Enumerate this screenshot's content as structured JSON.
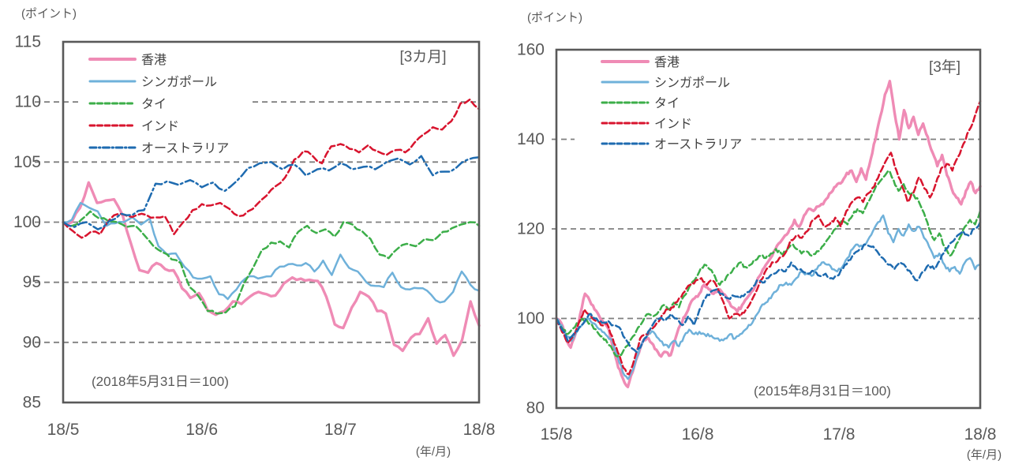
{
  "figure": {
    "description_labels": {
      "unit_label": "(ポイント)",
      "x_unit_label": "(年/月)"
    }
  },
  "chart_data": [
    {
      "type": "line",
      "period_label": "[3カ月]",
      "unit_label": "(ポイント)",
      "x_unit_label": "(年/月)",
      "note": "(2018年5月31日＝100)",
      "x_ticks": [
        "18/5",
        "18/6",
        "18/7",
        "18/8"
      ],
      "y_ticks": [
        115,
        110,
        105,
        100,
        95,
        90,
        85
      ],
      "gridlines": [
        110,
        105,
        100,
        95,
        90
      ],
      "ylim": [
        85,
        115
      ],
      "grid": "dashed-horizontal",
      "legend_position": "top-left-inside",
      "series": [
        {
          "key": "hk",
          "name": "香港",
          "color": "#ef8bb5",
          "line": "solid",
          "width": 3.4,
          "values": [
            100,
            100,
            101.2,
            103.3,
            101.6,
            101.8,
            101.9,
            100.6,
            98.2,
            96,
            95.8,
            96.6,
            96.1,
            96,
            94.5,
            93.7,
            94.1,
            92.7,
            92.3,
            92.6,
            93.4,
            93.2,
            93.8,
            94.2,
            94,
            93.9,
            94.9,
            95.4,
            95.3,
            95.2,
            95.1,
            93.8,
            91.5,
            91.2,
            92.9,
            94.2,
            93.8,
            92.6,
            92.4,
            89.8,
            89.3,
            90.4,
            90.7,
            92,
            89.9,
            90.6,
            88.9,
            90.2,
            93.4,
            91.4
          ]
        },
        {
          "key": "sg",
          "name": "シンガポール",
          "color": "#6fb1da",
          "line": "solid",
          "width": 2.5,
          "values": [
            100,
            100.2,
            101.6,
            101.2,
            100.9,
            99.7,
            99.9,
            100,
            100.4,
            99.8,
            100.3,
            98,
            97.3,
            97.4,
            96.3,
            95.4,
            95.3,
            95.5,
            94,
            93.6,
            94.4,
            95.3,
            95.5,
            95.4,
            95.5,
            96.3,
            96.5,
            96.4,
            96.6,
            95.9,
            96.8,
            95.6,
            97.3,
            96.2,
            95.9,
            95,
            94.7,
            94.6,
            95.8,
            94.6,
            94.4,
            94.5,
            94.3,
            93.5,
            93.4,
            94.2,
            95.9,
            94.8,
            94.3
          ]
        },
        {
          "key": "th",
          "name": "タイ",
          "color": "#3cae49",
          "line": "dashed",
          "width": 2.5,
          "values": [
            100,
            99.7,
            100.2,
            100.9,
            100.3,
            100.1,
            100,
            99.6,
            99.7,
            98.9,
            98,
            97.5,
            96.9,
            96.6,
            94.6,
            93.8,
            92.6,
            92.4,
            92.5,
            93,
            94.9,
            96.2,
            97.7,
            98.3,
            98.4,
            97.9,
            99.2,
            99.7,
            99.1,
            99.4,
            98.8,
            100,
            99.8,
            99.3,
            98.6,
            97.3,
            97,
            97.8,
            98.2,
            98,
            98.6,
            98.5,
            99.2,
            99.5,
            99.8,
            100,
            99.7
          ]
        },
        {
          "key": "in",
          "name": "インド",
          "color": "#d8142e",
          "line": "dashed",
          "width": 2.5,
          "values": [
            100,
            99.3,
            98.7,
            99.2,
            99,
            100.2,
            100.7,
            100.5,
            100.6,
            100.6,
            100.4,
            100.5,
            99,
            100,
            101,
            101.5,
            101.4,
            101.6,
            101.1,
            100.5,
            100.9,
            101.5,
            102.2,
            103,
            103.7,
            105.2,
            105.9,
            105.5,
            104.9,
            106.3,
            106.5,
            106.1,
            105.8,
            106.4,
            105.9,
            105.6,
            106,
            105.8,
            106.6,
            107.3,
            107.9,
            107.7,
            108.4,
            109.9,
            110.2,
            109.4
          ]
        },
        {
          "key": "au",
          "name": "オーストラリア",
          "color": "#1e6bb0",
          "line": "dash-dot",
          "width": 2.5,
          "values": [
            100,
            99.6,
            100,
            99.4,
            100.1,
            100.7,
            100.6,
            101,
            103.2,
            103.4,
            103.1,
            103.5,
            102.9,
            103.3,
            102.6,
            103.4,
            104.5,
            104.9,
            105,
            104.4,
            104.8,
            103.9,
            104.4,
            104.3,
            104.9,
            104.4,
            104.6,
            104.4,
            105,
            105.3,
            104.8,
            105.5,
            103.9,
            104.2,
            104.5,
            105.2,
            105.4
          ]
        }
      ]
    },
    {
      "type": "line",
      "period_label": "[3年]",
      "unit_label": "(ポイント)",
      "x_unit_label": "(年/月)",
      "note": "(2015年8月31日＝100)",
      "x_ticks": [
        "15/8",
        "16/8",
        "17/8",
        "18/8"
      ],
      "y_ticks": [
        160,
        140,
        120,
        100,
        80
      ],
      "gridlines": [
        140,
        120,
        100
      ],
      "ylim": [
        80,
        160
      ],
      "grid": "dashed-horizontal",
      "legend_position": "top-left-inside",
      "series": [
        {
          "key": "hk",
          "name": "香港",
          "color": "#ef8bb5",
          "line": "solid",
          "width": 3.4,
          "values": [
            100,
            99,
            95.5,
            93.5,
            96.5,
            101,
            105.5,
            104,
            102,
            100.5,
            99,
            97.5,
            93,
            89,
            86.5,
            84.7,
            88,
            91.5,
            94.5,
            95.5,
            94.5,
            93,
            91.5,
            92.5,
            91.8,
            95.5,
            98.5,
            100.5,
            103,
            104.5,
            105.5,
            107.5,
            106.5,
            105.5,
            106.5,
            105.5,
            104,
            102.5,
            101.5,
            103,
            104.5,
            106,
            108,
            110,
            112,
            113.5,
            115.5,
            117,
            118.5,
            120,
            122,
            120.5,
            123,
            124.5,
            124,
            125,
            125.5,
            127,
            128.5,
            130,
            130.5,
            132.5,
            133,
            130.5,
            133.5,
            131,
            135.5,
            140,
            145,
            150,
            153,
            146,
            140,
            146.5,
            142.5,
            145,
            141,
            143.5,
            140.5,
            137,
            134,
            136.5,
            132,
            129,
            127,
            125.5,
            128.5,
            130.5,
            128,
            129.5
          ]
        },
        {
          "key": "sg",
          "name": "シンガポール",
          "color": "#6fb1da",
          "line": "solid",
          "width": 2.5,
          "values": [
            100,
            98.5,
            96,
            95,
            97,
            98.5,
            100,
            99,
            98,
            97,
            96,
            95,
            91.5,
            88,
            86.5,
            88.5,
            92,
            95,
            96.5,
            97,
            95.5,
            94,
            93.5,
            95,
            93.8,
            96,
            97.5,
            96.5,
            97,
            96.5,
            96,
            95.5,
            95,
            95.5,
            96.5,
            95.5,
            96.5,
            97.5,
            98.5,
            100.5,
            102.5,
            103.5,
            104.5,
            106,
            107.5,
            108,
            107.5,
            109,
            110.5,
            110,
            109.5,
            111,
            112.5,
            112,
            111,
            110.5,
            111.5,
            113.5,
            115.5,
            116.5,
            116,
            117.5,
            119.5,
            121.5,
            123,
            119,
            117,
            120,
            118.5,
            121,
            119.5,
            120.5,
            118,
            116,
            113.5,
            114.5,
            112,
            110.5,
            111.5,
            110,
            112.5,
            113.5,
            111,
            112
          ]
        },
        {
          "key": "th",
          "name": "タイ",
          "color": "#3cae49",
          "line": "dashed",
          "width": 2.5,
          "values": [
            100,
            98,
            96.5,
            97.5,
            99,
            100,
            99.5,
            98.5,
            97,
            96,
            94.5,
            93,
            91.5,
            92.5,
            94,
            96,
            98,
            99.5,
            101,
            100.5,
            101.5,
            103,
            102,
            103.5,
            102.5,
            105,
            107,
            108.5,
            110.5,
            112,
            111,
            109.5,
            107.5,
            108.5,
            110,
            111.5,
            112.5,
            111.5,
            112,
            113,
            114,
            113.5,
            114.5,
            115.5,
            114.5,
            115,
            116.5,
            115.5,
            114.5,
            115,
            114,
            115,
            116,
            117.5,
            119,
            120.5,
            122,
            121,
            123,
            124.5,
            123.5,
            126,
            128,
            130,
            131.5,
            133,
            131,
            128.5,
            130,
            128,
            127.5,
            126,
            123.5,
            120,
            117.5,
            119,
            116,
            114,
            115.5,
            118,
            120.5,
            122,
            121,
            124
          ]
        },
        {
          "key": "in",
          "name": "インド",
          "color": "#d8142e",
          "line": "dashed",
          "width": 2.5,
          "values": [
            100,
            97,
            94.5,
            96,
            99,
            102,
            101,
            99.5,
            98.5,
            99,
            96,
            92.5,
            89,
            87.5,
            91,
            95.5,
            96.5,
            97.5,
            99,
            101,
            102,
            102.5,
            104.5,
            106,
            107.5,
            108.5,
            109,
            107.5,
            108.5,
            106.5,
            103.5,
            100,
            101,
            100.5,
            102,
            104,
            106.5,
            109,
            111.5,
            112.5,
            113.5,
            114.5,
            117.5,
            118.5,
            118,
            119.5,
            122,
            123,
            120.5,
            121,
            122.5,
            120.5,
            124,
            126,
            127,
            126,
            128,
            129.5,
            132.5,
            135,
            137,
            133,
            129.5,
            126,
            128,
            131.5,
            129,
            127,
            130,
            133.5,
            134.5,
            133,
            136,
            139,
            142,
            145,
            148.5
          ]
        },
        {
          "key": "au",
          "name": "オーストラリア",
          "color": "#1e6bb0",
          "line": "dashed",
          "width": 2.5,
          "values": [
            100,
            97.5,
            95,
            96.5,
            98,
            99.5,
            101,
            100,
            99,
            99.5,
            98.5,
            98,
            95.5,
            93.5,
            92.5,
            94.5,
            97,
            99,
            100,
            99.5,
            101,
            100,
            98.5,
            100.5,
            98.5,
            102,
            104.5,
            106,
            106.5,
            105.5,
            104.5,
            105,
            104.5,
            105.5,
            106.5,
            108.5,
            108,
            109,
            110,
            111,
            110.5,
            112.5,
            111,
            110.5,
            110,
            110.5,
            109.5,
            110,
            109,
            109.5,
            111,
            113,
            114.5,
            115.5,
            116.5,
            116,
            115,
            113.5,
            112,
            111,
            112.5,
            111.5,
            110,
            108.5,
            110.5,
            112,
            111,
            113,
            115.5,
            117,
            118.5,
            119.5,
            118.5,
            120,
            121.5
          ]
        }
      ]
    }
  ],
  "style_colors": {
    "axis": "#595959",
    "gridline": "#7f7f7f",
    "tick_text": "#595959",
    "legend_text": "#404040",
    "note_text": "#595959",
    "period_text": "#595959",
    "background": "#ffffff"
  }
}
